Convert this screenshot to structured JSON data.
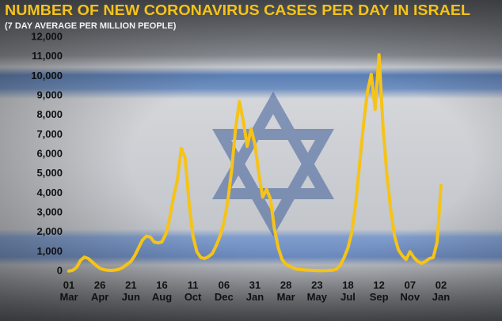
{
  "chart_data": {
    "type": "line",
    "title": "NUMBER OF NEW CORONAVIRUS CASES PER DAY IN ISRAEL",
    "subtitle": "(7 DAY AVERAGE PER MILLION PEOPLE)",
    "categories": [
      "01 Mar",
      null,
      null,
      null,
      null,
      null,
      null,
      null,
      "26 Apr",
      null,
      null,
      null,
      null,
      null,
      null,
      null,
      "21 Jun",
      null,
      null,
      null,
      null,
      null,
      null,
      null,
      "16 Aug",
      null,
      null,
      null,
      null,
      null,
      null,
      null,
      "11 Oct",
      null,
      null,
      null,
      null,
      null,
      null,
      null,
      "06 Dec",
      null,
      null,
      null,
      null,
      null,
      null,
      null,
      "31 Jan",
      null,
      null,
      null,
      null,
      null,
      null,
      null,
      "28 Mar",
      null,
      null,
      null,
      null,
      null,
      null,
      null,
      "23 May",
      null,
      null,
      null,
      null,
      null,
      null,
      null,
      "18 Jul",
      null,
      null,
      null,
      null,
      null,
      null,
      null,
      "12 Sep",
      null,
      null,
      null,
      null,
      null,
      null,
      null,
      "07 Nov",
      null,
      null,
      null,
      null,
      null,
      null,
      null,
      "02 Jan"
    ],
    "values": [
      10,
      50,
      200,
      550,
      720,
      650,
      480,
      300,
      150,
      80,
      50,
      40,
      60,
      100,
      200,
      350,
      500,
      800,
      1200,
      1600,
      1800,
      1750,
      1500,
      1450,
      1500,
      1900,
      2700,
      3800,
      4700,
      6300,
      5800,
      3500,
      1800,
      1000,
      700,
      650,
      750,
      900,
      1300,
      1800,
      2500,
      3600,
      5200,
      7300,
      8700,
      7700,
      6400,
      7300,
      6500,
      5000,
      3800,
      4200,
      3700,
      2200,
      1200,
      600,
      350,
      250,
      150,
      100,
      80,
      60,
      50,
      40,
      30,
      30,
      30,
      40,
      50,
      100,
      300,
      700,
      1200,
      2000,
      3500,
      5500,
      7500,
      9200,
      10100,
      8300,
      11100,
      7500,
      5000,
      3200,
      1800,
      1100,
      800,
      600,
      1000,
      700,
      500,
      400,
      500,
      650,
      700,
      1500,
      4400
    ],
    "color": "#f6c317",
    "ylim": [
      0,
      12000
    ],
    "yticks": [
      0,
      {
        "value": 1000,
        "label": "1,000"
      },
      {
        "value": 2000,
        "label": "2,000"
      },
      {
        "value": 3000,
        "label": "3,000"
      },
      {
        "value": 4000,
        "label": "4,000"
      },
      {
        "value": 5000,
        "label": "5,000"
      },
      {
        "value": 6000,
        "label": "6,000"
      },
      {
        "value": 7000,
        "label": "7,000"
      },
      {
        "value": 8000,
        "label": "8,000"
      },
      {
        "value": 9000,
        "label": "9,000"
      },
      {
        "value": 10000,
        "label": "10,000"
      },
      {
        "value": 11000,
        "label": "11,000"
      },
      {
        "value": 12000,
        "label": "12,000"
      }
    ]
  }
}
